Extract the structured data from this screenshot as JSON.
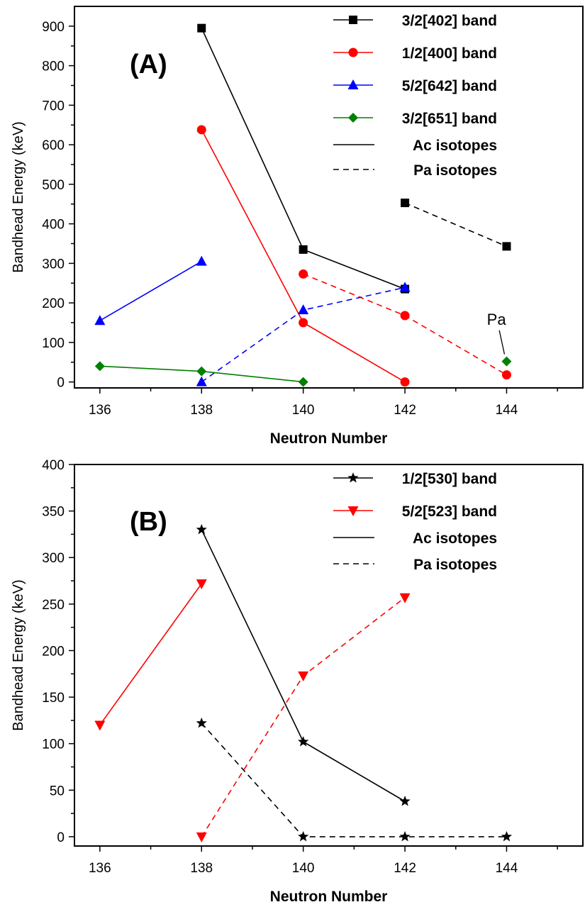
{
  "chart_data": [
    {
      "type": "line",
      "panel_label": "(A)",
      "xlabel": "Neutron Number",
      "ylabel": "Bandhead Energy (keV)",
      "xlim": [
        135.5,
        145.5
      ],
      "ylim": [
        -15,
        950
      ],
      "xticks": [
        136,
        138,
        140,
        142,
        144
      ],
      "yticks": [
        0,
        100,
        200,
        300,
        400,
        500,
        600,
        700,
        800,
        900
      ],
      "grid": false,
      "legend_position": "top-right",
      "series": [
        {
          "name": "3/2[402] band",
          "color": "#000000",
          "marker": "square",
          "ac": {
            "x": [
              138,
              140,
              142
            ],
            "y": [
              895,
              335,
              235
            ]
          },
          "pa": {
            "x": [
              142,
              144
            ],
            "y": [
              453,
              343
            ]
          }
        },
        {
          "name": "1/2[400] band",
          "color": "#ff0000",
          "marker": "circle",
          "ac": {
            "x": [
              138,
              140,
              142
            ],
            "y": [
              638,
              150,
              0
            ]
          },
          "pa": {
            "x": [
              140,
              142,
              144
            ],
            "y": [
              273,
              168,
              18
            ]
          }
        },
        {
          "name": "5/2[642] band",
          "color": "#0000ff",
          "marker": "triangle-up",
          "ac": {
            "x": [
              136,
              138
            ],
            "y": [
              155,
              305
            ]
          },
          "pa": {
            "x": [
              138,
              140,
              142
            ],
            "y": [
              0,
              182,
              239
            ]
          }
        },
        {
          "name": "3/2[651] band",
          "color": "#008000",
          "marker": "diamond",
          "ac": {
            "x": [
              136,
              138,
              140
            ],
            "y": [
              40,
              27,
              0
            ]
          },
          "pa": {
            "x": [
              144
            ],
            "y": [
              52
            ]
          }
        }
      ],
      "line_legend": [
        "Ac isotopes",
        "Pa isotopes"
      ],
      "annotations": [
        {
          "text": "Pa",
          "x": 143.8,
          "y": 145,
          "points_to": {
            "x": 144,
            "y": 52
          }
        }
      ]
    },
    {
      "type": "line",
      "panel_label": "(B)",
      "xlabel": "Neutron Number",
      "ylabel": "Bandhead Energy (keV)",
      "xlim": [
        135.5,
        145.5
      ],
      "ylim": [
        -10,
        400
      ],
      "xticks": [
        136,
        138,
        140,
        142,
        144
      ],
      "yticks": [
        0,
        50,
        100,
        150,
        200,
        250,
        300,
        350,
        400
      ],
      "grid": false,
      "legend_position": "top-right",
      "series": [
        {
          "name": "1/2[530] band",
          "color": "#000000",
          "marker": "star",
          "ac": {
            "x": [
              138,
              140,
              142
            ],
            "y": [
              330,
              102,
              38
            ]
          },
          "pa": {
            "x": [
              138,
              140,
              142,
              144
            ],
            "y": [
              122,
              0,
              0,
              0
            ]
          }
        },
        {
          "name": "5/2[523] band",
          "color": "#ff0000",
          "marker": "triangle-down",
          "ac": {
            "x": [
              136,
              138
            ],
            "y": [
              120,
              272
            ]
          },
          "pa": {
            "x": [
              138,
              140,
              142
            ],
            "y": [
              0,
              173,
              257
            ]
          }
        }
      ],
      "line_legend": [
        "Ac isotopes",
        "Pa isotopes"
      ],
      "annotations": []
    }
  ]
}
